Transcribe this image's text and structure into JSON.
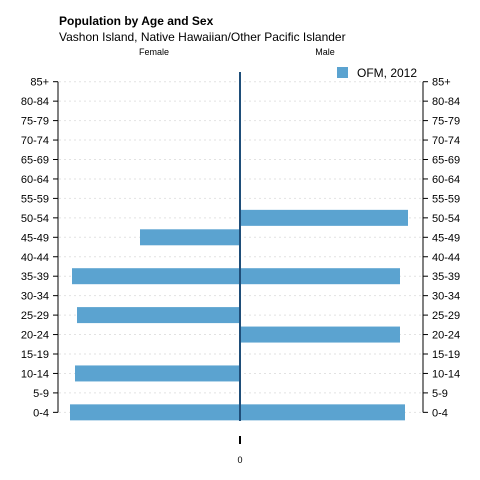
{
  "chart_data": {
    "type": "bar",
    "orientation": "horizontal",
    "title": "Population by Age and Sex",
    "subtitle": "Vashon Island, Native Hawaiian/Other Pacific Islander",
    "categories": [
      "0-4",
      "5-9",
      "10-14",
      "15-19",
      "20-24",
      "25-29",
      "30-34",
      "35-39",
      "40-44",
      "45-49",
      "50-54",
      "55-59",
      "60-64",
      "65-69",
      "70-74",
      "75-79",
      "80-84",
      "85+"
    ],
    "female_label": "Female",
    "male_label": "Male",
    "x_tick_label": "0",
    "series": [
      {
        "name": "OFM, 2012",
        "color": "#5ba3d0",
        "female": [
          17,
          0,
          16.5,
          0,
          0,
          16.3,
          0,
          16.8,
          0,
          10,
          0,
          0,
          0,
          0,
          0,
          0,
          0,
          0
        ],
        "male": [
          16.5,
          0,
          0,
          0,
          16,
          0,
          0,
          16,
          0,
          0,
          16.8,
          0,
          0,
          0,
          0,
          0,
          0,
          0
        ]
      }
    ],
    "xlim": [
      -18,
      18
    ],
    "grid": true,
    "legend_position": "top-right"
  }
}
